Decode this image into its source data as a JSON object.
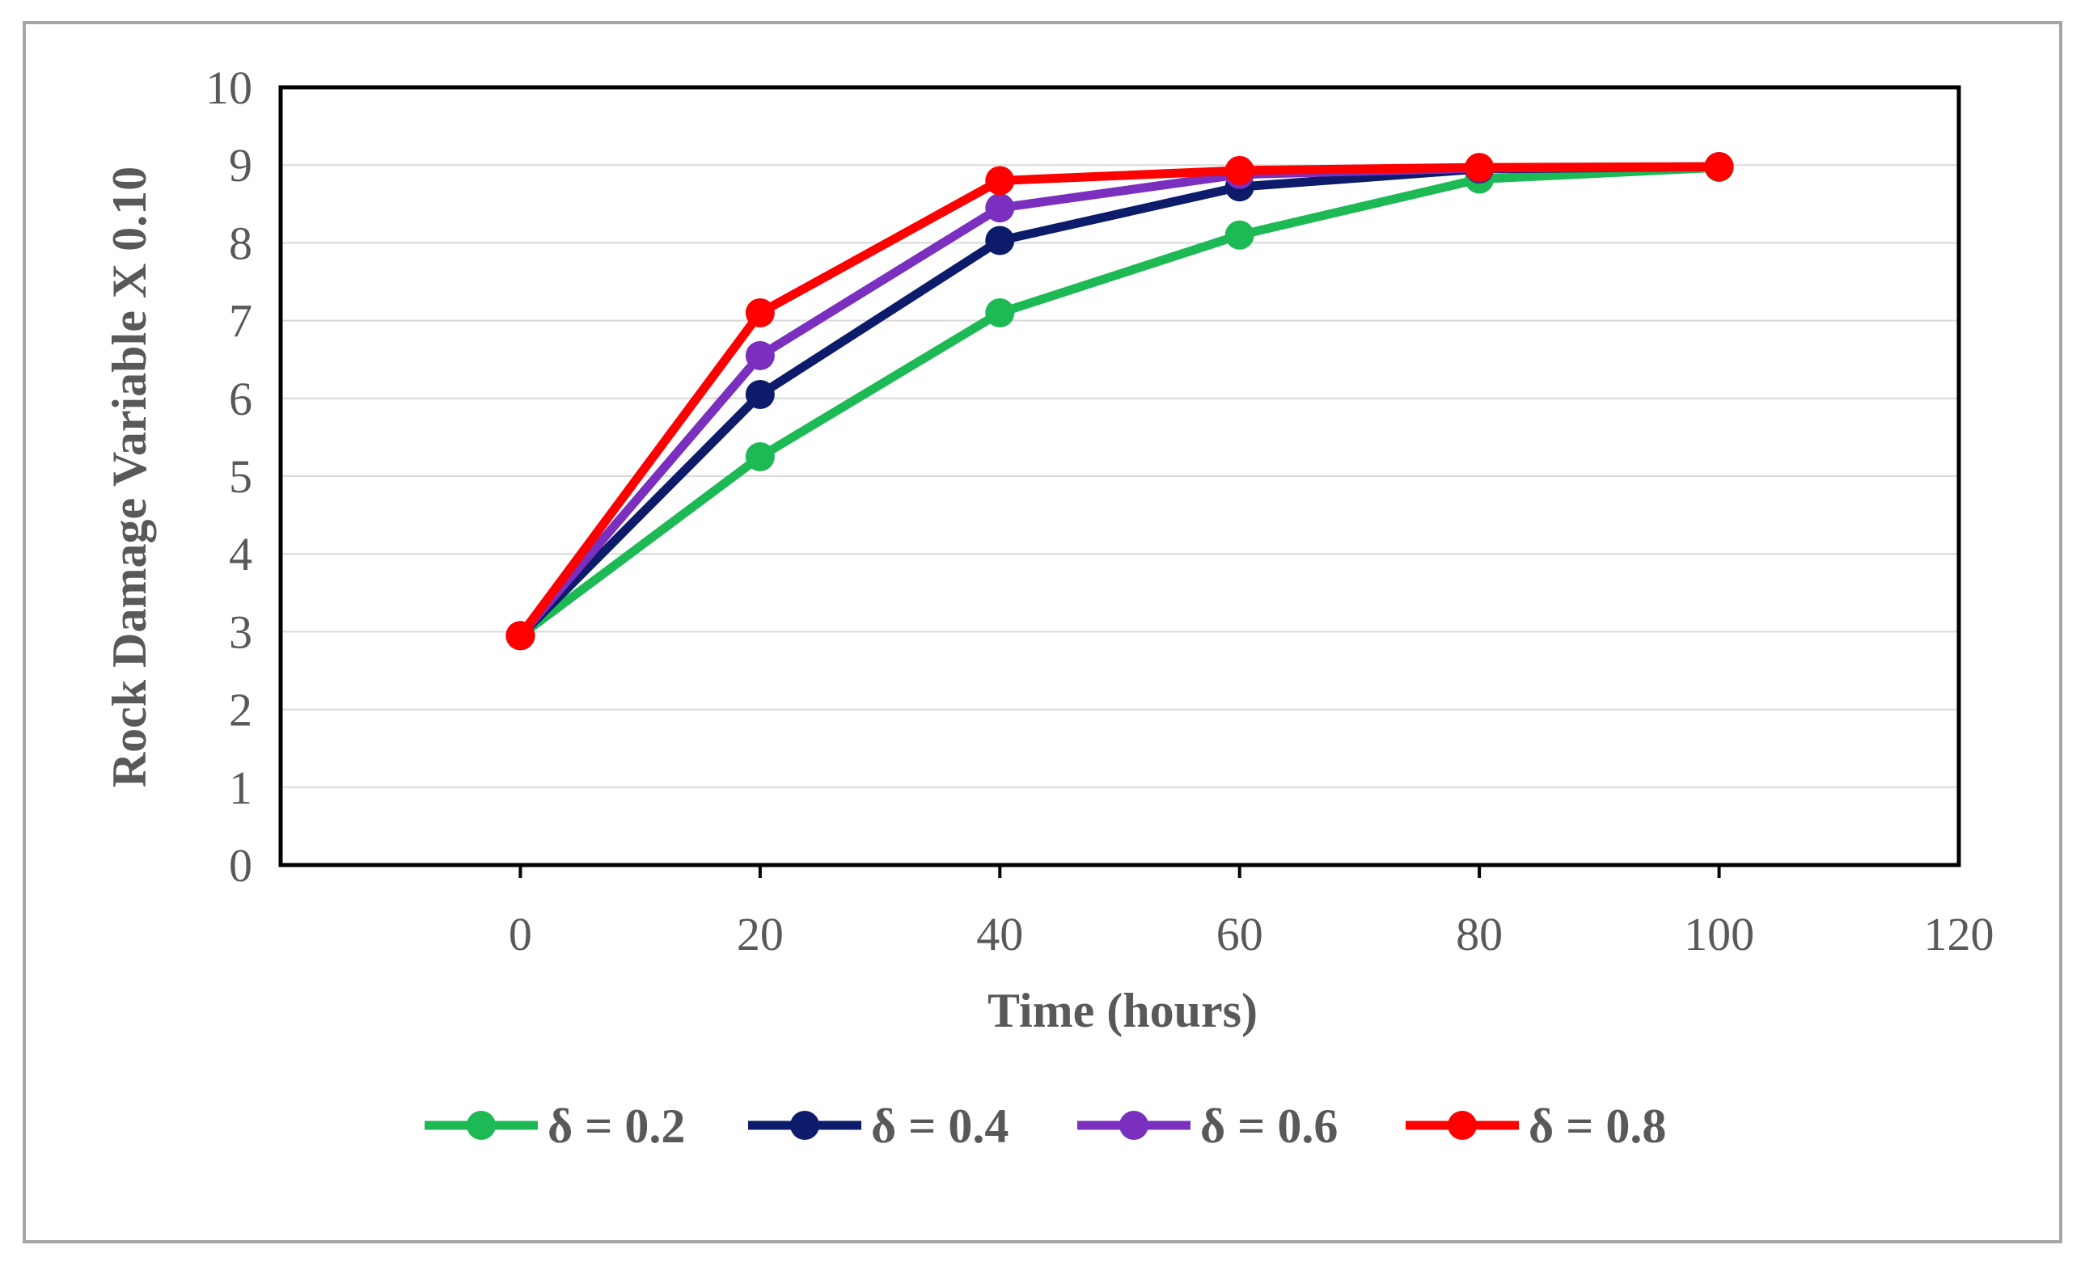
{
  "chart_data": {
    "type": "line",
    "title": "",
    "xlabel": "Time (hours)",
    "ylabel": "Rock Damage Variable X 0.10",
    "xlim": [
      -20,
      120
    ],
    "ylim": [
      0,
      10
    ],
    "x_ticks": [
      0,
      20,
      40,
      60,
      80,
      100,
      120
    ],
    "y_ticks": [
      0,
      1,
      2,
      3,
      4,
      5,
      6,
      7,
      8,
      9,
      10
    ],
    "grid": "horizontal",
    "legend_position": "bottom",
    "x": [
      0,
      20,
      40,
      60,
      80,
      100
    ],
    "series": [
      {
        "name": "δ = 0.2",
        "color": "#1db954",
        "values": [
          2.95,
          5.25,
          7.1,
          8.1,
          8.82,
          8.97
        ]
      },
      {
        "name": "δ = 0.4",
        "color": "#0d1b6b",
        "values": [
          2.95,
          6.05,
          8.03,
          8.72,
          8.95,
          8.98
        ]
      },
      {
        "name": "δ = 0.6",
        "color": "#7b2fbe",
        "values": [
          2.95,
          6.55,
          8.45,
          8.88,
          8.96,
          8.98
        ]
      },
      {
        "name": "δ = 0.8",
        "color": "#ff0000",
        "values": [
          2.95,
          7.1,
          8.8,
          8.93,
          8.97,
          8.98
        ]
      }
    ]
  }
}
